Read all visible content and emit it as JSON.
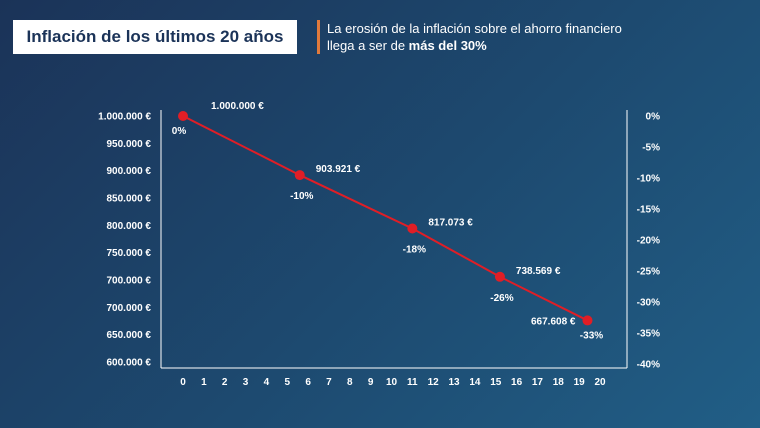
{
  "header": {
    "title": "Inflación de los últimos 20 años",
    "subtitle_prefix": "La erosión de la inflación sobre el ahorro financiero llega a ser de ",
    "subtitle_bold": "más del 30%"
  },
  "colors": {
    "line": "#e01e26",
    "axis": "#ffffff",
    "accent": "#e07a3c"
  },
  "chart_data": {
    "type": "line",
    "x_ticks": [
      "0",
      "1",
      "2",
      "3",
      "4",
      "5",
      "6",
      "7",
      "8",
      "9",
      "10",
      "11",
      "12",
      "13",
      "14",
      "15",
      "16",
      "17",
      "18",
      "19",
      "20"
    ],
    "y_left_ticks": [
      "1.000.000 €",
      "950.000 €",
      "900.000 €",
      "850.000 €",
      "800.000 €",
      "750.000 €",
      "700.000 €",
      "700.000 €",
      "650.000 €",
      "600.000 €"
    ],
    "y_right_ticks": [
      "0%",
      "-5%",
      "-10%",
      "-15%",
      "-20%",
      "-25%",
      "-30%",
      "-35%",
      "-40%"
    ],
    "xlim": [
      0,
      20
    ],
    "ylim": [
      600000,
      1000000
    ],
    "grid": false,
    "series": [
      {
        "points": [
          {
            "x": 0,
            "y": 1000000,
            "value_label": "1.000.000 €",
            "pct_label": "0%"
          },
          {
            "x": 5.6,
            "y": 903921,
            "value_label": "903.921 €",
            "pct_label": "-10%"
          },
          {
            "x": 11,
            "y": 817073,
            "value_label": "817.073 €",
            "pct_label": "-18%"
          },
          {
            "x": 15.2,
            "y": 738569,
            "value_label": "738.569 €",
            "pct_label": "-26%"
          },
          {
            "x": 19.4,
            "y": 667608,
            "value_label": "667.608 €",
            "pct_label": "-33%"
          }
        ]
      }
    ]
  }
}
